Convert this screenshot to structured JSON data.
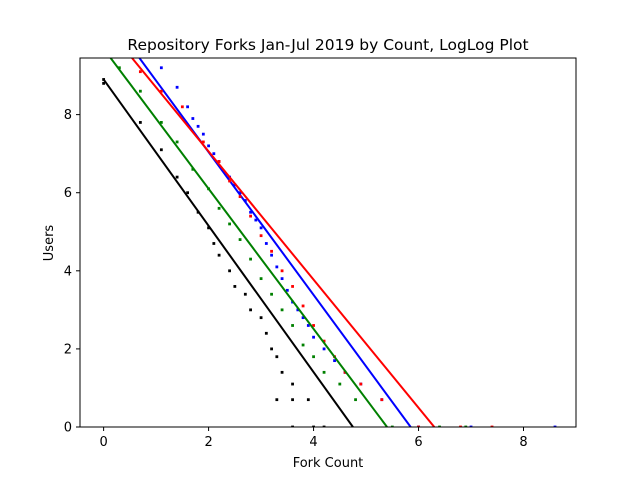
{
  "chart_data": {
    "type": "scatter",
    "title": "Repository Forks Jan-Jul 2019 by Count, LogLog Plot",
    "xlabel": "Fork Count",
    "ylabel": "Users",
    "xlim": [
      -0.45,
      9.0
    ],
    "ylim": [
      0,
      9.45
    ],
    "xticks": [
      "0",
      "2",
      "4",
      "6",
      "8"
    ],
    "yticks": [
      "0",
      "2",
      "4",
      "6",
      "8"
    ],
    "grid": false,
    "legend": "none",
    "series": [
      {
        "color": "#0000ff",
        "fit": [
          [
            0.6,
            9.6
          ],
          [
            5.85,
            0
          ]
        ],
        "points": [
          [
            1.1,
            9.2
          ],
          [
            1.4,
            8.7
          ],
          [
            1.6,
            8.2
          ],
          [
            1.7,
            7.9
          ],
          [
            1.8,
            7.7
          ],
          [
            1.9,
            7.5
          ],
          [
            2.0,
            7.2
          ],
          [
            2.1,
            7.0
          ],
          [
            2.2,
            6.8
          ],
          [
            2.4,
            6.4
          ],
          [
            2.5,
            6.2
          ],
          [
            2.6,
            6.0
          ],
          [
            2.7,
            5.8
          ],
          [
            2.8,
            5.5
          ],
          [
            2.9,
            5.3
          ],
          [
            3.0,
            5.1
          ],
          [
            3.1,
            4.7
          ],
          [
            3.2,
            4.4
          ],
          [
            3.3,
            4.1
          ],
          [
            3.4,
            3.8
          ],
          [
            3.5,
            3.5
          ],
          [
            3.6,
            3.2
          ],
          [
            3.7,
            3.0
          ],
          [
            3.8,
            2.8
          ],
          [
            3.9,
            2.6
          ],
          [
            4.0,
            2.3
          ],
          [
            4.2,
            2.0
          ],
          [
            4.4,
            1.7
          ],
          [
            4.6,
            1.4
          ],
          [
            4.9,
            1.1
          ],
          [
            5.3,
            0.7
          ],
          [
            6.0,
            0
          ],
          [
            7.0,
            0
          ],
          [
            8.6,
            0
          ]
        ]
      },
      {
        "color": "#ff0000",
        "fit": [
          [
            0.45,
            9.6
          ],
          [
            6.3,
            0
          ]
        ],
        "points": [
          [
            0.7,
            9.1
          ],
          [
            1.1,
            8.6
          ],
          [
            1.5,
            8.2
          ],
          [
            1.9,
            7.3
          ],
          [
            2.2,
            6.8
          ],
          [
            2.4,
            6.3
          ],
          [
            2.6,
            5.9
          ],
          [
            2.8,
            5.4
          ],
          [
            3.0,
            4.9
          ],
          [
            3.2,
            4.5
          ],
          [
            3.4,
            4.0
          ],
          [
            3.6,
            3.6
          ],
          [
            3.8,
            3.1
          ],
          [
            4.0,
            2.6
          ],
          [
            4.2,
            2.2
          ],
          [
            4.4,
            1.8
          ],
          [
            4.6,
            1.4
          ],
          [
            4.9,
            1.1
          ],
          [
            5.3,
            0.7
          ],
          [
            6.0,
            0
          ],
          [
            6.8,
            0
          ],
          [
            7.4,
            0
          ]
        ]
      },
      {
        "color": "#008000",
        "fit": [
          [
            0.05,
            9.6
          ],
          [
            5.4,
            0
          ]
        ],
        "points": [
          [
            0.3,
            9.2
          ],
          [
            0.7,
            8.6
          ],
          [
            1.1,
            7.8
          ],
          [
            1.4,
            7.3
          ],
          [
            1.7,
            6.6
          ],
          [
            2.0,
            6.1
          ],
          [
            2.2,
            5.6
          ],
          [
            2.4,
            5.2
          ],
          [
            2.6,
            4.8
          ],
          [
            2.8,
            4.3
          ],
          [
            3.0,
            3.8
          ],
          [
            3.2,
            3.4
          ],
          [
            3.4,
            3.0
          ],
          [
            3.6,
            2.6
          ],
          [
            3.8,
            2.1
          ],
          [
            4.0,
            1.8
          ],
          [
            4.2,
            1.4
          ],
          [
            4.5,
            1.1
          ],
          [
            4.8,
            0.7
          ],
          [
            5.5,
            0
          ],
          [
            6.4,
            0
          ],
          [
            6.9,
            0
          ]
        ]
      },
      {
        "color": "#000000",
        "fit": [
          [
            0,
            8.9
          ],
          [
            4.75,
            0
          ]
        ],
        "points": [
          [
            0.0,
            8.9
          ],
          [
            0.0,
            8.8
          ],
          [
            0.7,
            7.8
          ],
          [
            1.1,
            7.1
          ],
          [
            1.4,
            6.4
          ],
          [
            1.6,
            6.0
          ],
          [
            1.8,
            5.5
          ],
          [
            2.0,
            5.1
          ],
          [
            2.1,
            4.7
          ],
          [
            2.2,
            4.4
          ],
          [
            2.4,
            4.0
          ],
          [
            2.5,
            3.6
          ],
          [
            2.7,
            3.4
          ],
          [
            2.8,
            3.0
          ],
          [
            3.0,
            2.8
          ],
          [
            3.1,
            2.4
          ],
          [
            3.2,
            2.0
          ],
          [
            3.3,
            1.8
          ],
          [
            3.4,
            1.4
          ],
          [
            3.6,
            1.1
          ],
          [
            3.3,
            0.7
          ],
          [
            3.6,
            0.7
          ],
          [
            3.9,
            0.7
          ],
          [
            3.6,
            0
          ],
          [
            4.0,
            0
          ],
          [
            4.2,
            0
          ]
        ]
      }
    ]
  }
}
